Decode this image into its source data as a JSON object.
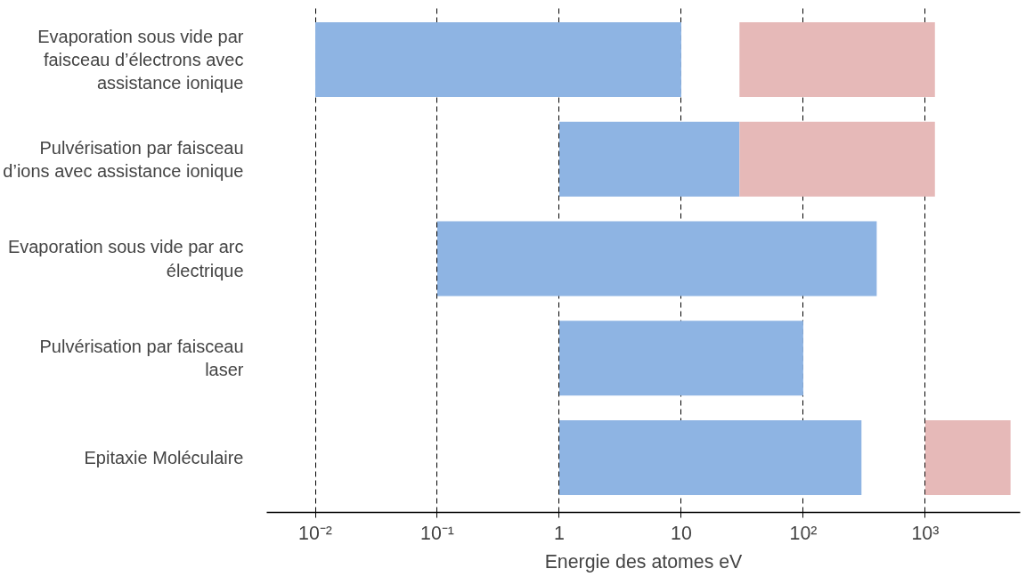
{
  "chart_data": {
    "type": "bar",
    "orientation": "horizontal",
    "xlabel": "Energie des atomes eV",
    "log": "x",
    "grid": "x",
    "categories": [
      "Evaporation sous vide par faisceau d’électrons avec assistance ionique",
      "Pulvérisation par faisceau d’ions avec assistance ionique",
      "Evaporation sous vide par arc électrique",
      "Pulvérisation par faisceau laser",
      "Epitaxie Moléculaire"
    ],
    "series": [
      {
        "color": "#8eb4e3",
        "base": [
          0.01,
          1,
          0.1,
          1,
          1
        ],
        "values": [
          9.99,
          29,
          399.9,
          99,
          299
        ]
      },
      {
        "color": "#e6b9b8",
        "base": [
          30,
          30,
          null,
          null,
          1000
        ],
        "values": [
          1170,
          1170,
          null,
          null,
          4000
        ]
      }
    ],
    "xlim": [
      0.004,
      6000
    ],
    "xticks": [
      {
        "value": 0.01,
        "label": "10⁻²"
      },
      {
        "value": 0.1,
        "label": "10⁻¹"
      },
      1,
      10,
      {
        "value": 100,
        "label": "10²"
      },
      {
        "value": 1000,
        "label": "10³"
      }
    ]
  }
}
